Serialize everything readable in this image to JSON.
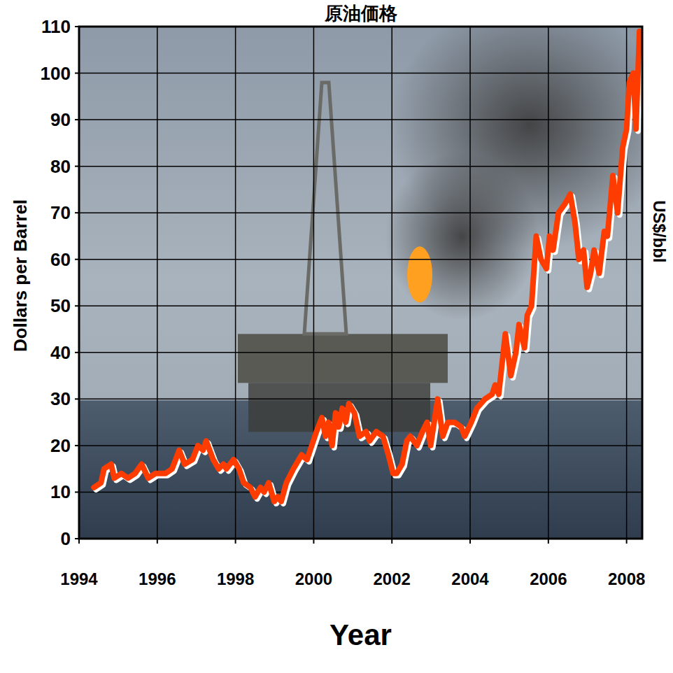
{
  "chart_data": {
    "type": "line",
    "title": "原油価格",
    "x_label": "Year",
    "y_label": "Dollars per Barrel",
    "right_label": "US$/bbl",
    "color": "#ff3c00",
    "grid": true,
    "xlim": [
      1994,
      2008.4
    ],
    "xticks": [
      1994,
      1996,
      1998,
      2000,
      2002,
      2004,
      2006,
      2008
    ],
    "ylim": [
      0,
      110
    ],
    "yticks": [
      0,
      10,
      20,
      30,
      40,
      50,
      60,
      70,
      80,
      90,
      100,
      110
    ],
    "x": [
      1994.38,
      1994.56,
      1994.64,
      1994.82,
      1994.9,
      1995.08,
      1995.25,
      1995.43,
      1995.6,
      1995.77,
      1995.95,
      1996.21,
      1996.38,
      1996.56,
      1996.7,
      1996.9,
      1997.04,
      1997.17,
      1997.25,
      1997.43,
      1997.57,
      1997.69,
      1997.77,
      1997.95,
      1998.09,
      1998.21,
      1998.38,
      1998.5,
      1998.64,
      1998.73,
      1998.85,
      1998.99,
      1999.08,
      1999.17,
      1999.3,
      1999.48,
      1999.69,
      1999.83,
      1999.95,
      2000.07,
      2000.21,
      2000.3,
      2000.38,
      2000.47,
      2000.56,
      2000.64,
      2000.73,
      2000.82,
      2000.9,
      2001.04,
      2001.17,
      2001.34,
      2001.43,
      2001.6,
      2001.77,
      2001.91,
      2002.03,
      2002.12,
      2002.26,
      2002.38,
      2002.47,
      2002.64,
      2002.78,
      2002.9,
      2002.99,
      2003.17,
      2003.3,
      2003.43,
      2003.6,
      2003.77,
      2003.86,
      2004.03,
      2004.17,
      2004.38,
      2004.56,
      2004.64,
      2004.73,
      2004.9,
      2005.04,
      2005.17,
      2005.25,
      2005.39,
      2005.46,
      2005.57,
      2005.69,
      2005.81,
      2005.95,
      2006.03,
      2006.12,
      2006.26,
      2006.43,
      2006.56,
      2006.68,
      2006.78,
      2006.9,
      2006.99,
      2007.08,
      2007.17,
      2007.3,
      2007.43,
      2007.51,
      2007.65,
      2007.77,
      2007.9,
      2008.0,
      2008.07,
      2008.17,
      2008.24,
      2008.33
    ],
    "values": [
      11,
      12,
      15,
      16,
      13,
      14,
      13,
      14,
      16,
      13,
      14,
      14,
      15,
      19,
      16,
      17,
      20,
      19,
      21,
      17,
      15,
      16,
      15,
      17,
      15,
      12,
      11,
      9,
      11,
      10,
      12,
      8,
      9,
      8,
      12,
      15,
      18,
      17,
      20,
      23,
      26,
      22,
      25,
      20,
      27,
      24,
      28,
      25,
      29,
      27,
      22,
      23,
      21,
      23,
      22,
      18,
      14,
      14,
      16,
      21,
      22,
      20,
      23,
      25,
      20,
      30,
      22,
      25,
      25,
      24,
      22,
      25,
      28,
      30,
      31,
      33,
      31,
      44,
      35,
      40,
      46,
      41,
      48,
      50,
      65,
      60,
      58,
      65,
      62,
      70,
      72,
      74,
      68,
      60,
      62,
      54,
      57,
      62,
      57,
      66,
      65,
      78,
      70,
      84,
      88,
      98,
      100,
      88,
      109
    ]
  }
}
